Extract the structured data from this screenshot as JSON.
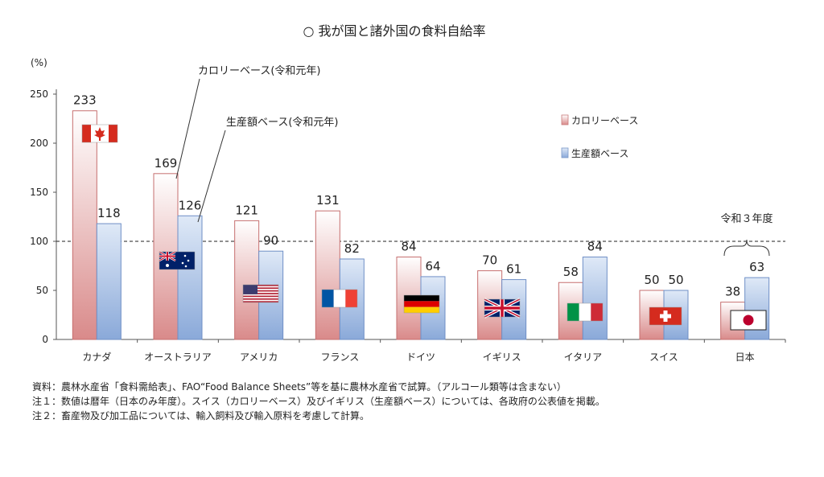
{
  "chart_data": {
    "type": "bar",
    "title": "○ 我が国と諸外国の食料自給率",
    "ylabel": "(%)",
    "ylim": [
      0,
      250
    ],
    "yticks": [
      0,
      50,
      100,
      150,
      200,
      250
    ],
    "reference_line": 100,
    "categories": [
      "カナダ",
      "オーストラリア",
      "アメリカ",
      "フランス",
      "ドイツ",
      "イギリス",
      "イタリア",
      "スイス",
      "日本"
    ],
    "series": [
      {
        "name": "カロリーベース",
        "color": "#e8a0a0",
        "values": [
          233,
          169,
          121,
          131,
          84,
          70,
          58,
          50,
          38
        ]
      },
      {
        "name": "生産額ベース",
        "color": "#8fb0df",
        "values": [
          118,
          126,
          90,
          82,
          64,
          61,
          84,
          50,
          63
        ]
      }
    ],
    "legend": {
      "position": "right",
      "items": [
        "カロリーベース",
        "生産額ベース"
      ]
    },
    "annotations": {
      "calorie_callout": "カロリーベース(令和元年)",
      "production_callout": "生産額ベース(令和元年)",
      "japan_note": "令和３年度"
    },
    "flags": [
      "canada",
      "australia",
      "usa",
      "france",
      "germany",
      "uk",
      "italy",
      "switzerland",
      "japan"
    ]
  },
  "notes": {
    "source": "資料：農林水産省「食料需給表」、FAO“Food Balance Sheets”等を基に農林水産省で試算。（アルコール類等は含まない）",
    "note1": "注１：数値は暦年（日本のみ年度）。スイス（カロリーベース）及びイギリス（生産額ベース）については、各政府の公表値を掲載。",
    "note2": "注２：畜産物及び加工品については、輸入飼料及び輸入原料を考慮して計算。"
  }
}
